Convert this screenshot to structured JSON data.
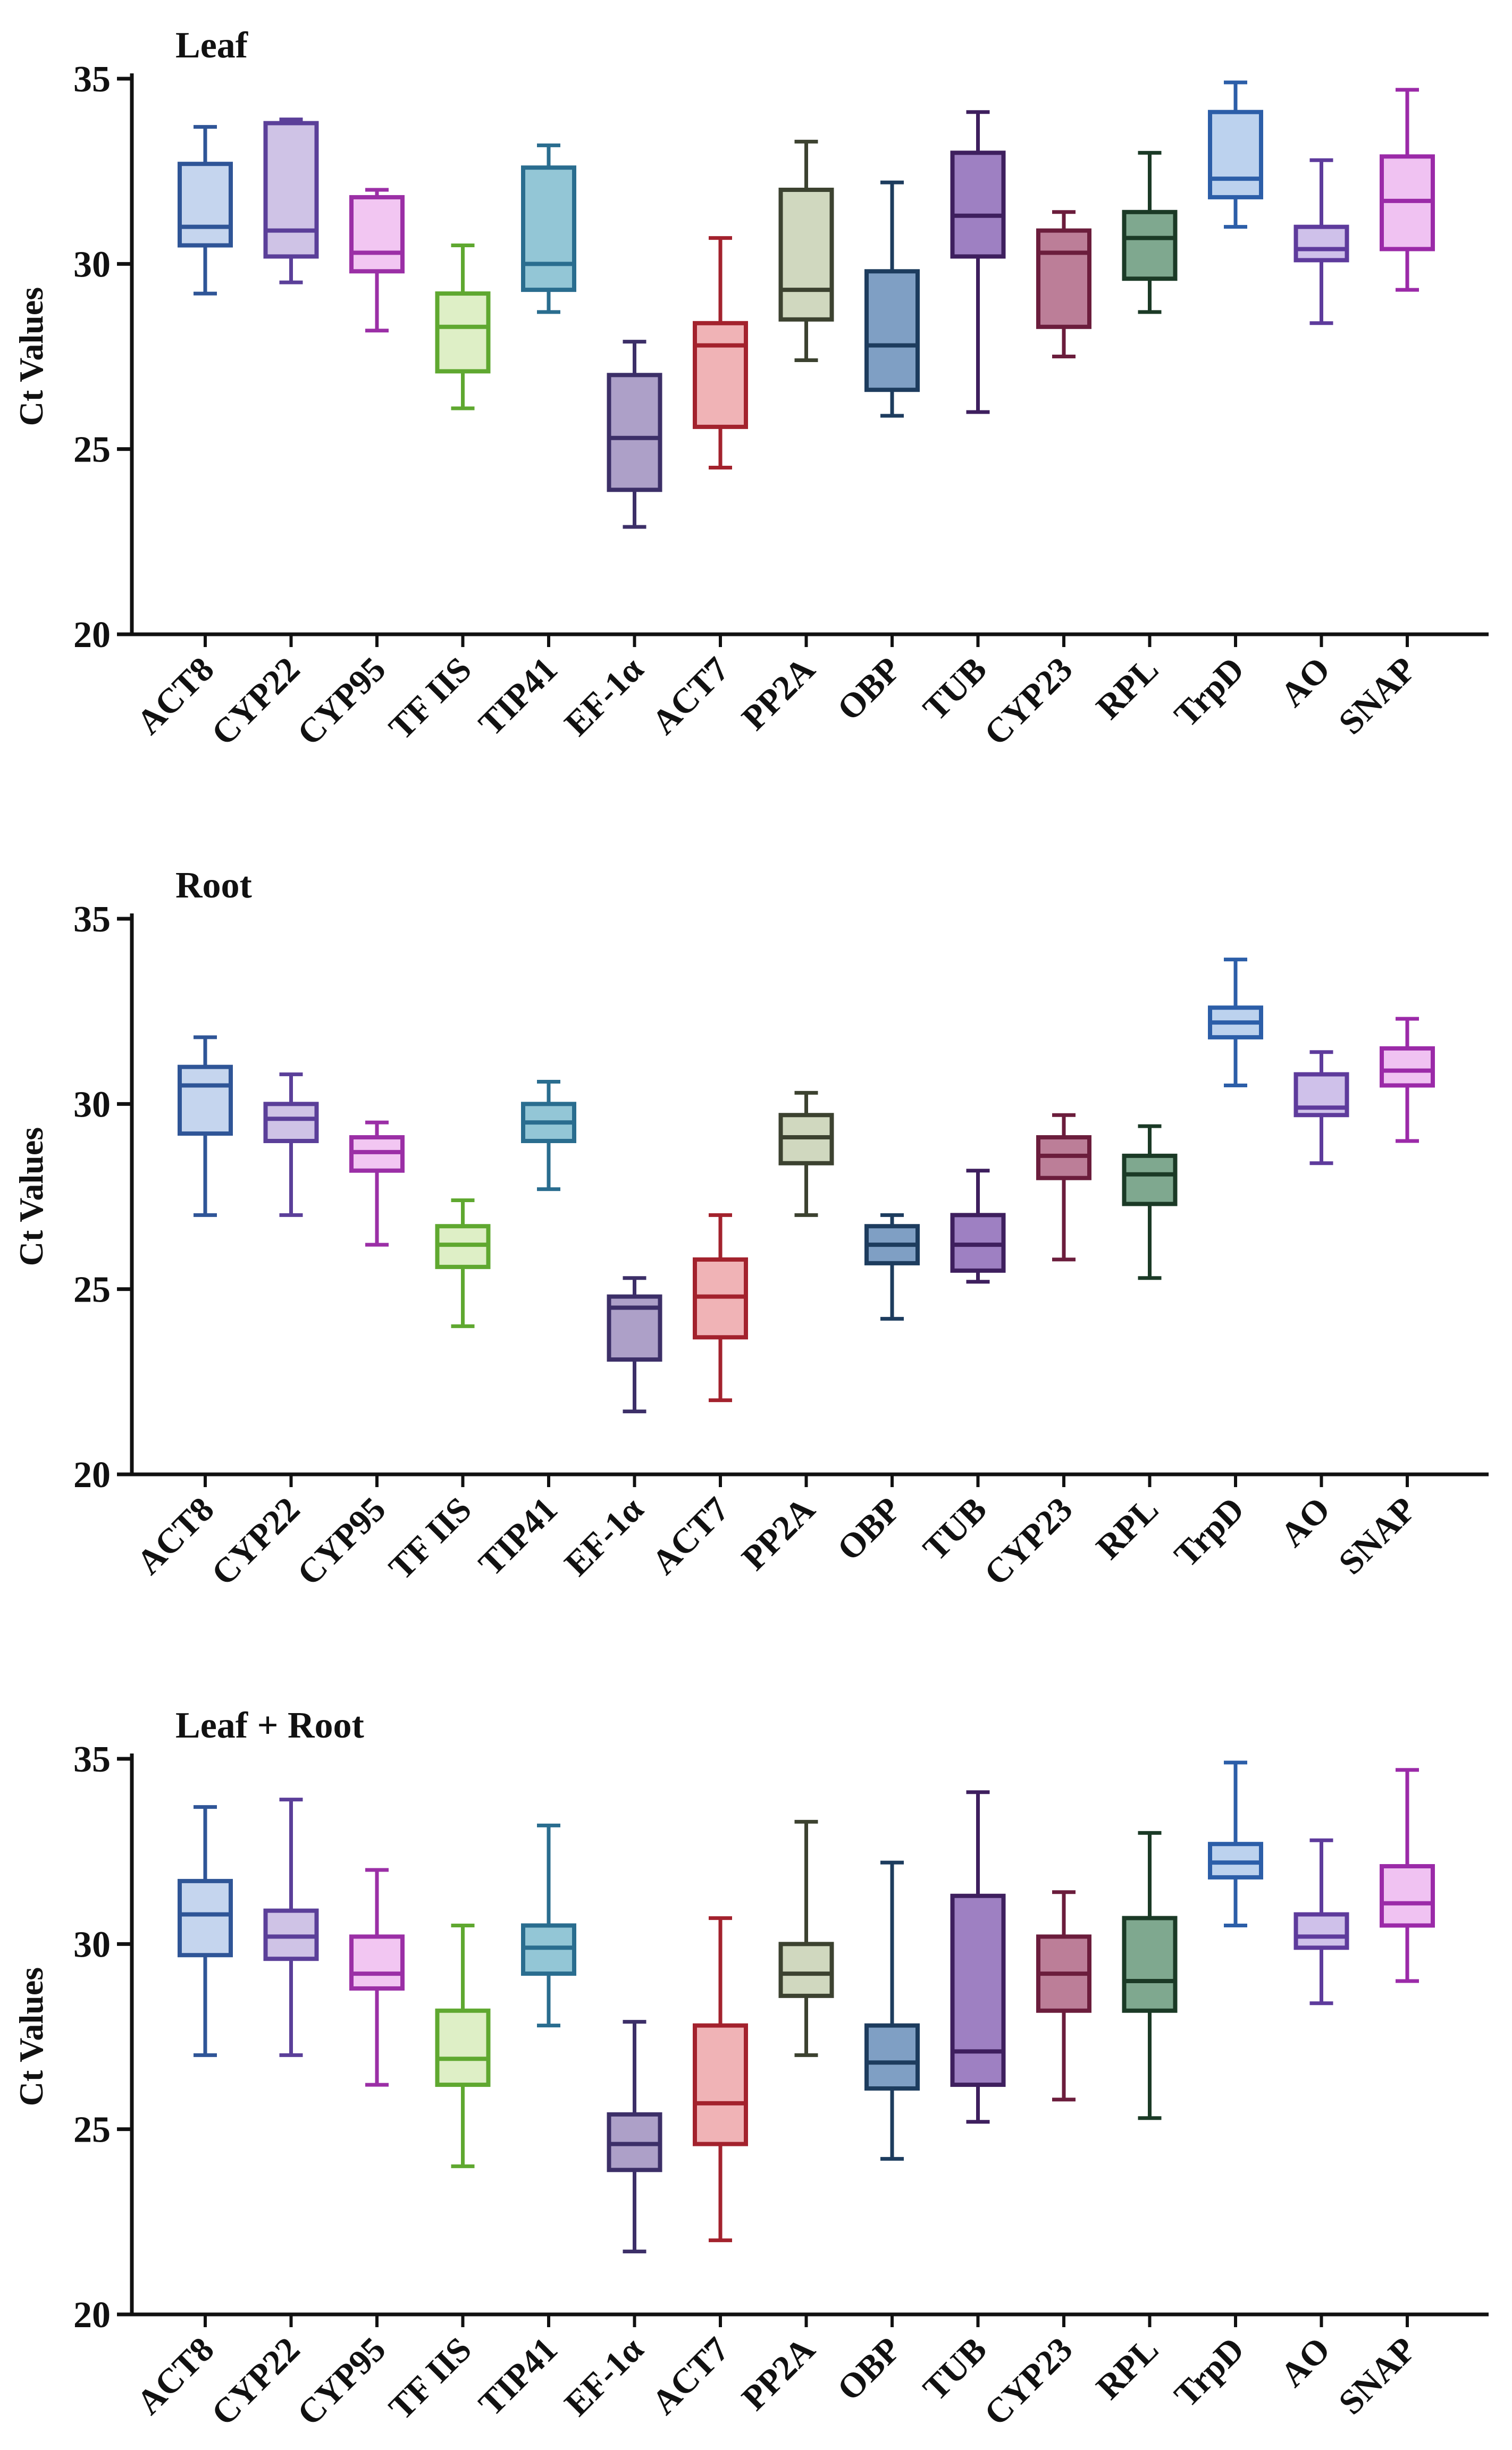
{
  "figure": {
    "colors": {
      "ACT8": {
        "stroke": "#2f5597",
        "fill": "#c5d5ee"
      },
      "CYP22": {
        "stroke": "#5b3f99",
        "fill": "#cfc3e6"
      },
      "CYP95": {
        "stroke": "#9b2fa6",
        "fill": "#f2c6f2"
      },
      "TF IIS": {
        "stroke": "#5fa830",
        "fill": "#deefc6"
      },
      "TIP41": {
        "stroke": "#2a6d8f",
        "fill": "#93c6d6"
      },
      "EF-1α": {
        "stroke": "#3c2f68",
        "fill": "#ada0c8"
      },
      "ACT7": {
        "stroke": "#a3222d",
        "fill": "#f0b3b6"
      },
      "PP2A": {
        "stroke": "#3c4230",
        "fill": "#d0d8bf"
      },
      "OBP": {
        "stroke": "#1d3c5e",
        "fill": "#7f9fc4"
      },
      "TUB": {
        "stroke": "#3e1f5e",
        "fill": "#9e80c2"
      },
      "CYP23": {
        "stroke": "#6b1d3c",
        "fill": "#bc7e98"
      },
      "RPL": {
        "stroke": "#1b3a26",
        "fill": "#7fa88f"
      },
      "TrpD": {
        "stroke": "#2c5ea8",
        "fill": "#bcd2ee"
      },
      "AO": {
        "stroke": "#5e3b9c",
        "fill": "#cfc1ea"
      },
      "SNAP": {
        "stroke": "#9b2aa8",
        "fill": "#f0c2f2"
      }
    }
  },
  "chart_data": [
    {
      "type": "box",
      "title": "Leaf",
      "xlabel": "",
      "ylabel": "Ct Values",
      "ylim": [
        20,
        35
      ],
      "yticks": [
        "20",
        "25",
        "30",
        "35"
      ],
      "categories": [
        "ACT8",
        "CYP22",
        "CYP95",
        "TF IIS",
        "TIP41",
        "EF-1α",
        "ACT7",
        "PP2A",
        "OBP",
        "TUB",
        "CYP23",
        "RPL",
        "TrpD",
        "AO",
        "SNAP"
      ],
      "boxes": [
        {
          "min": 29.2,
          "q1": 30.5,
          "median": 31.0,
          "q3": 32.7,
          "max": 33.7
        },
        {
          "min": 29.5,
          "q1": 30.2,
          "median": 30.9,
          "q3": 33.8,
          "max": 33.9
        },
        {
          "min": 28.2,
          "q1": 29.8,
          "median": 30.3,
          "q3": 31.8,
          "max": 32.0
        },
        {
          "min": 26.1,
          "q1": 27.1,
          "median": 28.3,
          "q3": 29.2,
          "max": 30.5
        },
        {
          "min": 28.7,
          "q1": 29.3,
          "median": 30.0,
          "q3": 32.6,
          "max": 33.2
        },
        {
          "min": 22.9,
          "q1": 23.9,
          "median": 25.3,
          "q3": 27.0,
          "max": 27.9
        },
        {
          "min": 24.5,
          "q1": 25.6,
          "median": 27.8,
          "q3": 28.4,
          "max": 30.7
        },
        {
          "min": 27.4,
          "q1": 28.5,
          "median": 29.3,
          "q3": 32.0,
          "max": 33.3
        },
        {
          "min": 25.9,
          "q1": 26.6,
          "median": 27.8,
          "q3": 29.8,
          "max": 32.2
        },
        {
          "min": 26.0,
          "q1": 30.2,
          "median": 31.3,
          "q3": 33.0,
          "max": 34.1
        },
        {
          "min": 27.5,
          "q1": 28.3,
          "median": 30.3,
          "q3": 30.9,
          "max": 31.4
        },
        {
          "min": 28.7,
          "q1": 29.6,
          "median": 30.7,
          "q3": 31.4,
          "max": 33.0
        },
        {
          "min": 31.0,
          "q1": 31.8,
          "median": 32.3,
          "q3": 34.1,
          "max": 34.9
        },
        {
          "min": 28.4,
          "q1": 30.1,
          "median": 30.4,
          "q3": 31.0,
          "max": 32.8
        },
        {
          "min": 29.3,
          "q1": 30.4,
          "median": 31.7,
          "q3": 32.9,
          "max": 34.7
        }
      ]
    },
    {
      "type": "box",
      "title": "Root",
      "xlabel": "",
      "ylabel": "Ct Values",
      "ylim": [
        20,
        35
      ],
      "yticks": [
        "20",
        "25",
        "30",
        "35"
      ],
      "categories": [
        "ACT8",
        "CYP22",
        "CYP95",
        "TF IIS",
        "TIP41",
        "EF-1α",
        "ACT7",
        "PP2A",
        "OBP",
        "TUB",
        "CYP23",
        "RPL",
        "TrpD",
        "AO",
        "SNAP"
      ],
      "boxes": [
        {
          "min": 27.0,
          "q1": 29.2,
          "median": 30.5,
          "q3": 31.0,
          "max": 31.8
        },
        {
          "min": 27.0,
          "q1": 29.0,
          "median": 29.6,
          "q3": 30.0,
          "max": 30.8
        },
        {
          "min": 26.2,
          "q1": 28.2,
          "median": 28.7,
          "q3": 29.1,
          "max": 29.5
        },
        {
          "min": 24.0,
          "q1": 25.6,
          "median": 26.2,
          "q3": 26.7,
          "max": 27.4
        },
        {
          "min": 27.7,
          "q1": 29.0,
          "median": 29.5,
          "q3": 30.0,
          "max": 30.6
        },
        {
          "min": 21.7,
          "q1": 23.1,
          "median": 24.5,
          "q3": 24.8,
          "max": 25.3
        },
        {
          "min": 22.0,
          "q1": 23.7,
          "median": 24.8,
          "q3": 25.8,
          "max": 27.0
        },
        {
          "min": 27.0,
          "q1": 28.4,
          "median": 29.1,
          "q3": 29.7,
          "max": 30.3
        },
        {
          "min": 24.2,
          "q1": 25.7,
          "median": 26.2,
          "q3": 26.7,
          "max": 27.0
        },
        {
          "min": 25.2,
          "q1": 25.5,
          "median": 26.2,
          "q3": 27.0,
          "max": 28.2
        },
        {
          "min": 25.8,
          "q1": 28.0,
          "median": 28.6,
          "q3": 29.1,
          "max": 29.7
        },
        {
          "min": 25.3,
          "q1": 27.3,
          "median": 28.1,
          "q3": 28.6,
          "max": 29.4
        },
        {
          "min": 30.5,
          "q1": 31.8,
          "median": 32.2,
          "q3": 32.6,
          "max": 33.9
        },
        {
          "min": 28.4,
          "q1": 29.7,
          "median": 29.9,
          "q3": 30.8,
          "max": 31.4
        },
        {
          "min": 29.0,
          "q1": 30.5,
          "median": 30.9,
          "q3": 31.5,
          "max": 32.3
        }
      ]
    },
    {
      "type": "box",
      "title": "Leaf + Root",
      "xlabel": "",
      "ylabel": "Ct Values",
      "ylim": [
        20,
        35
      ],
      "yticks": [
        "20",
        "25",
        "30",
        "35"
      ],
      "categories": [
        "ACT8",
        "CYP22",
        "CYP95",
        "TF IIS",
        "TIP41",
        "EF-1α",
        "ACT7",
        "PP2A",
        "OBP",
        "TUB",
        "CYP23",
        "RPL",
        "TrpD",
        "AO",
        "SNAP"
      ],
      "boxes": [
        {
          "min": 27.0,
          "q1": 29.7,
          "median": 30.8,
          "q3": 31.7,
          "max": 33.7
        },
        {
          "min": 27.0,
          "q1": 29.6,
          "median": 30.2,
          "q3": 30.9,
          "max": 33.9
        },
        {
          "min": 26.2,
          "q1": 28.8,
          "median": 29.2,
          "q3": 30.2,
          "max": 32.0
        },
        {
          "min": 24.0,
          "q1": 26.2,
          "median": 26.9,
          "q3": 28.2,
          "max": 30.5
        },
        {
          "min": 27.8,
          "q1": 29.2,
          "median": 29.9,
          "q3": 30.5,
          "max": 33.2
        },
        {
          "min": 21.7,
          "q1": 23.9,
          "median": 24.6,
          "q3": 25.4,
          "max": 27.9
        },
        {
          "min": 22.0,
          "q1": 24.6,
          "median": 25.7,
          "q3": 27.8,
          "max": 30.7
        },
        {
          "min": 27.0,
          "q1": 28.6,
          "median": 29.2,
          "q3": 30.0,
          "max": 33.3
        },
        {
          "min": 24.2,
          "q1": 26.1,
          "median": 26.8,
          "q3": 27.8,
          "max": 32.2
        },
        {
          "min": 25.2,
          "q1": 26.2,
          "median": 27.1,
          "q3": 31.3,
          "max": 34.1
        },
        {
          "min": 25.8,
          "q1": 28.2,
          "median": 29.2,
          "q3": 30.2,
          "max": 31.4
        },
        {
          "min": 25.3,
          "q1": 28.2,
          "median": 29.0,
          "q3": 30.7,
          "max": 33.0
        },
        {
          "min": 30.5,
          "q1": 31.8,
          "median": 32.2,
          "q3": 32.7,
          "max": 34.9
        },
        {
          "min": 28.4,
          "q1": 29.9,
          "median": 30.2,
          "q3": 30.8,
          "max": 32.8
        },
        {
          "min": 29.0,
          "q1": 30.5,
          "median": 31.1,
          "q3": 32.1,
          "max": 34.7
        }
      ]
    }
  ]
}
